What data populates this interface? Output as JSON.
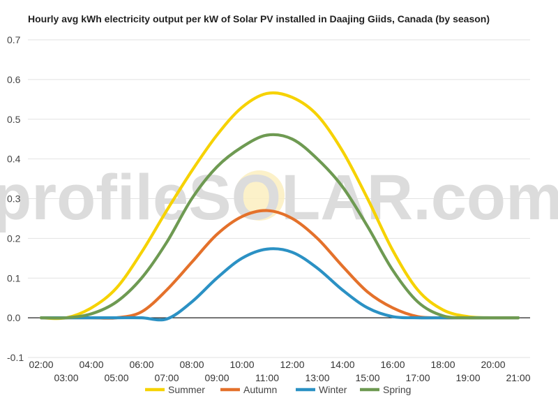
{
  "chart_data": {
    "type": "line",
    "title": "Hourly avg kWh electricity output per kW of Solar PV installed in Daajing Giids, Canada (by season)",
    "watermark": "profileSOLAR.com",
    "xlabel": "",
    "ylabel": "",
    "ylim": [
      -0.1,
      0.7
    ],
    "yticks": [
      -0.1,
      0.0,
      0.1,
      0.2,
      0.3,
      0.4,
      0.5,
      0.6,
      0.7
    ],
    "ytick_labels": [
      "-0.1",
      "0.0",
      "0.1",
      "0.2",
      "0.3",
      "0.4",
      "0.5",
      "0.6",
      "0.7"
    ],
    "x": [
      "02:00",
      "03:00",
      "04:00",
      "05:00",
      "06:00",
      "07:00",
      "08:00",
      "09:00",
      "10:00",
      "11:00",
      "12:00",
      "13:00",
      "14:00",
      "15:00",
      "16:00",
      "17:00",
      "18:00",
      "19:00",
      "20:00",
      "21:00"
    ],
    "grid": true,
    "legend_position": "bottom",
    "series": [
      {
        "name": "Summer",
        "color": "#f6d200",
        "values": [
          0.0,
          0.0,
          0.025,
          0.075,
          0.165,
          0.27,
          0.37,
          0.46,
          0.53,
          0.565,
          0.555,
          0.51,
          0.42,
          0.3,
          0.17,
          0.07,
          0.02,
          0.003,
          0.0,
          0.0
        ]
      },
      {
        "name": "Autumn",
        "color": "#e4712b",
        "values": [
          0.0,
          0.0,
          0.0,
          0.0,
          0.015,
          0.07,
          0.14,
          0.21,
          0.255,
          0.27,
          0.25,
          0.2,
          0.13,
          0.065,
          0.025,
          0.003,
          0.0,
          0.0,
          0.0,
          0.0
        ]
      },
      {
        "name": "Winter",
        "color": "#2b91c4",
        "values": [
          0.0,
          0.0,
          0.0,
          0.0,
          0.0,
          -0.003,
          0.04,
          0.1,
          0.15,
          0.173,
          0.165,
          0.125,
          0.07,
          0.025,
          0.003,
          0.0,
          0.0,
          0.0,
          0.0,
          0.0
        ]
      },
      {
        "name": "Spring",
        "color": "#6e9a52",
        "values": [
          0.0,
          0.0,
          0.01,
          0.04,
          0.1,
          0.19,
          0.3,
          0.38,
          0.43,
          0.46,
          0.45,
          0.4,
          0.33,
          0.23,
          0.12,
          0.04,
          0.005,
          0.0,
          0.0,
          0.0
        ]
      }
    ]
  }
}
